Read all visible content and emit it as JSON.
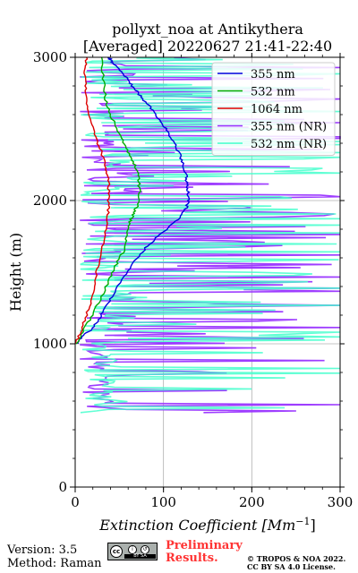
{
  "chart_data": {
    "type": "line",
    "title": "pollyxt_noa at Antikythera",
    "subtitle": "[Averaged] 20220627 21:41-22:40",
    "xlabel": "Extinction Coefficient [Mm",
    "xlabel_sup": "−1",
    "xlabel_end": "]",
    "ylabel": "Height (m)",
    "xlim": [
      0,
      300
    ],
    "ylim": [
      0,
      3000
    ],
    "xticks": [
      "0",
      "100",
      "200",
      "300"
    ],
    "yticks": [
      "0",
      "1000",
      "2000",
      "3000"
    ],
    "grid": true,
    "legend_position": "top-right",
    "series": [
      {
        "name": "355 nm",
        "color": "#0000dd",
        "x": [
          2,
          10,
          20,
          28,
          35,
          42,
          55,
          68,
          80,
          92,
          105,
          118,
          126,
          128,
          128,
          127,
          126,
          125,
          122,
          118,
          112,
          105,
          97,
          88,
          78,
          70,
          62,
          55,
          46,
          40,
          38
        ],
        "y": [
          1000,
          1060,
          1110,
          1180,
          1260,
          1340,
          1470,
          1580,
          1670,
          1740,
          1810,
          1880,
          1950,
          2000,
          2050,
          2100,
          2150,
          2200,
          2260,
          2330,
          2400,
          2480,
          2550,
          2630,
          2700,
          2760,
          2820,
          2880,
          2940,
          2980,
          3000
        ]
      },
      {
        "name": "532 nm",
        "color": "#00aa00",
        "x": [
          1,
          10,
          20,
          30,
          40,
          47,
          55,
          58,
          60,
          62,
          66,
          70,
          73,
          72,
          70,
          66,
          60,
          54,
          46,
          38,
          34,
          32,
          30
        ],
        "y": [
          1000,
          1100,
          1200,
          1330,
          1460,
          1560,
          1650,
          1720,
          1790,
          1850,
          1910,
          1960,
          2050,
          2130,
          2200,
          2270,
          2340,
          2420,
          2520,
          2620,
          2720,
          2850,
          3000
        ]
      },
      {
        "name": "1064 nm",
        "color": "#dd0000",
        "x": [
          0,
          6,
          12,
          18,
          22,
          26,
          30,
          34,
          37,
          38,
          38,
          37,
          34,
          30,
          24,
          18,
          14,
          12,
          11,
          12,
          13
        ],
        "y": [
          1000,
          1080,
          1180,
          1300,
          1420,
          1540,
          1660,
          1780,
          1900,
          2000,
          2100,
          2180,
          2250,
          2330,
          2430,
          2530,
          2640,
          2750,
          2850,
          2930,
          3000
        ]
      }
    ],
    "nr_series": [
      {
        "name": "355 nm (NR)",
        "color": "#9933ff"
      },
      {
        "name": "532 nm (NR)",
        "color": "#44ffcc"
      }
    ]
  },
  "footer": {
    "version": "Version: 3.5",
    "method": "Method: Raman",
    "preliminary": "Preliminary Results.",
    "copyright_line1": "© TROPOS & NOA 2022.",
    "copyright_line2": "CC BY SA 4.0 License.",
    "cc_label": "cc",
    "cc_bar": "BY  SA"
  }
}
